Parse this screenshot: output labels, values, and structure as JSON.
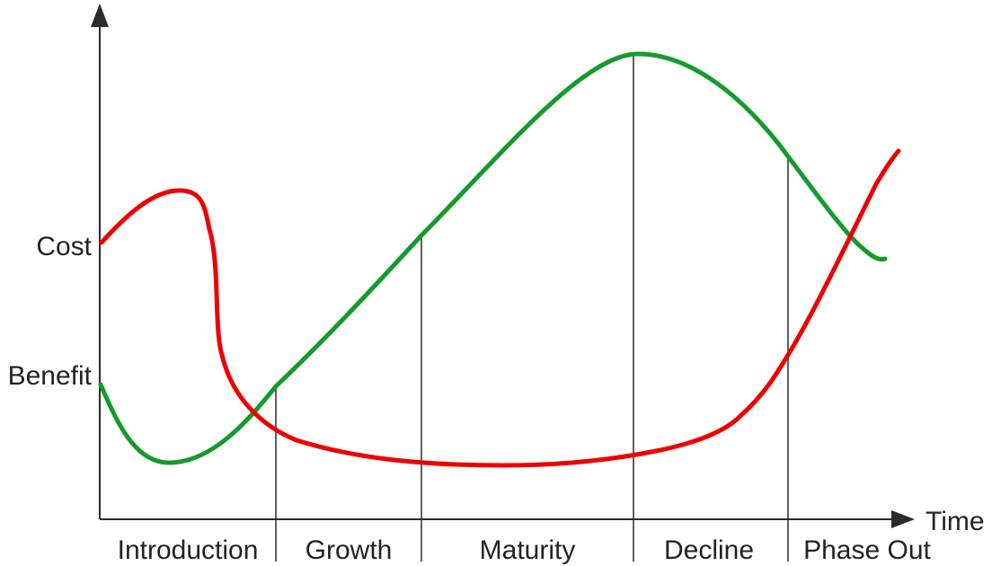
{
  "diagram": {
    "y_labels": {
      "cost": "Cost",
      "benefit": "Benefit"
    },
    "x_label": "Time",
    "phases": [
      {
        "label": "Introduction"
      },
      {
        "label": "Growth"
      },
      {
        "label": "Maturity"
      },
      {
        "label": "Decline"
      },
      {
        "label": "Phase Out"
      }
    ],
    "curves": {
      "cost": {
        "color": "#ee0000"
      },
      "benefit": {
        "color": "#149b2c"
      }
    },
    "axis_color": "#2b2b2b"
  }
}
